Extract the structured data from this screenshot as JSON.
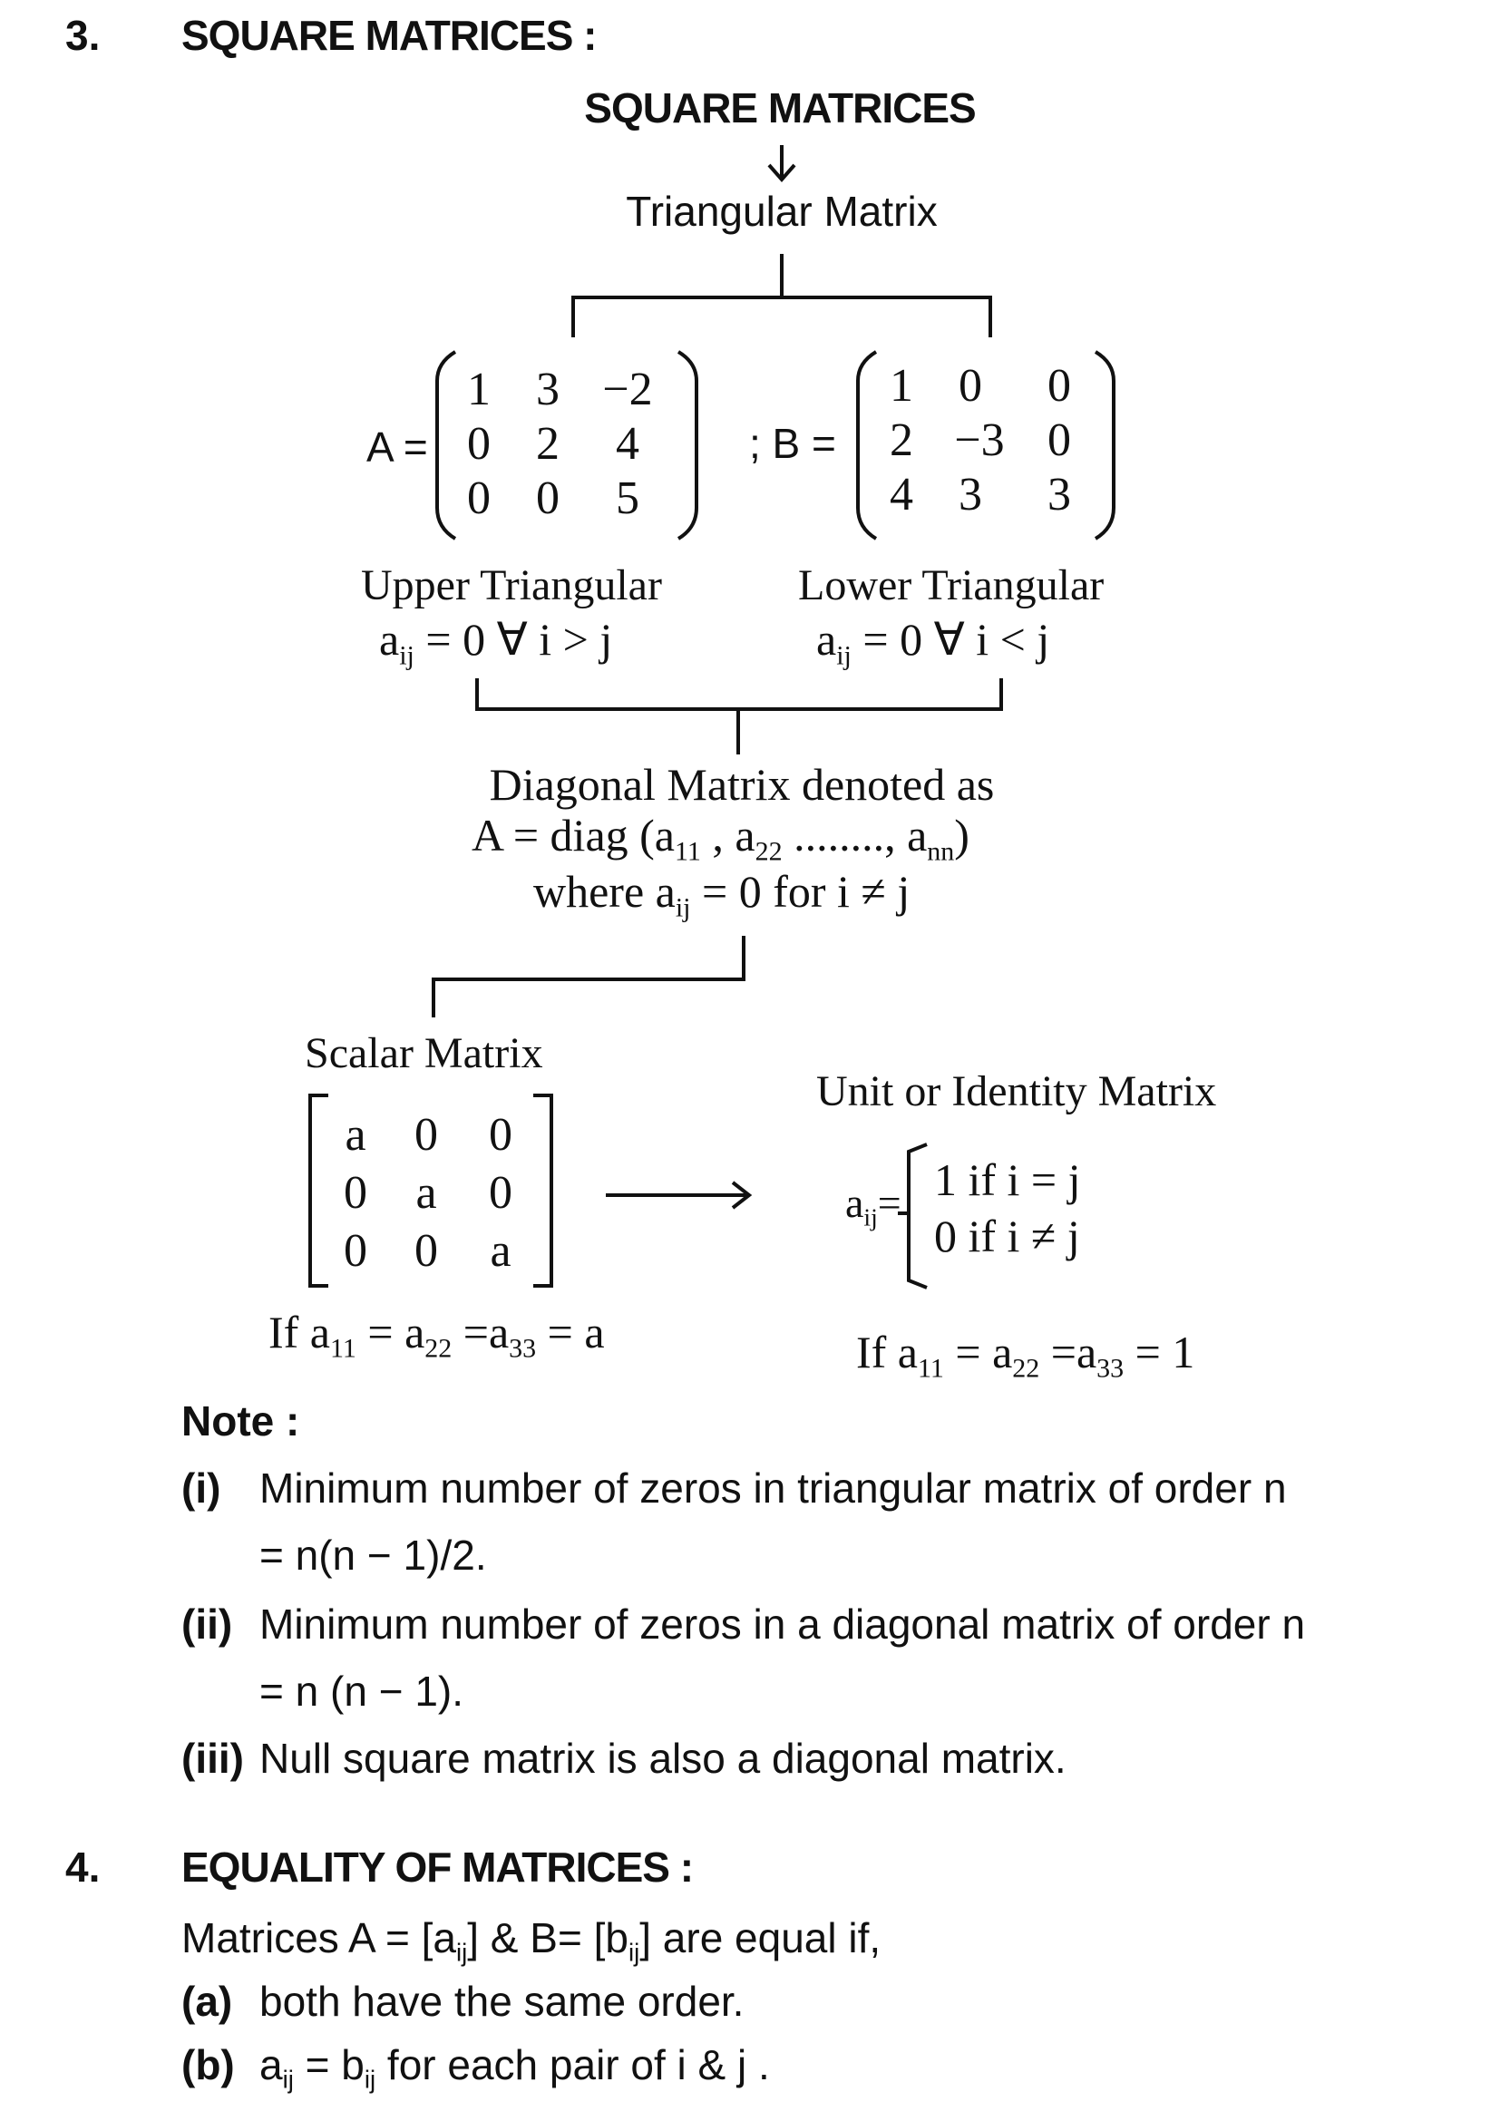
{
  "section3": {
    "number": "3.",
    "title": "SQUARE MATRICES :",
    "diagram_title": "SQUARE MATRICES",
    "triangular": "Triangular Matrix",
    "matrixA": {
      "name": "A =",
      "rows": [
        [
          "1",
          "3",
          "−2"
        ],
        [
          "0",
          "2",
          "4"
        ],
        [
          "0",
          "0",
          "5"
        ]
      ]
    },
    "matrixB": {
      "name": "; B =",
      "rows": [
        [
          "1",
          "0",
          "0"
        ],
        [
          "2",
          "−3",
          "0"
        ],
        [
          "4",
          "3",
          "3"
        ]
      ]
    },
    "upper": {
      "label": "Upper Triangular",
      "cond_a": "a",
      "cond_sub": "ij",
      "cond_rest": " =  0  ∀  i > j"
    },
    "lower": {
      "label": "Lower Triangular",
      "cond_a": "a",
      "cond_sub": "ij",
      "cond_rest": " =  0  ∀  i < j"
    },
    "diagonal": {
      "line1": "Diagonal Matrix denoted as",
      "line2_pre": "A = diag (a",
      "line2_s1": "11",
      "line2_mid1": " , a",
      "line2_s2": "22",
      "line2_mid2": " ........, a",
      "line2_s3": "nn",
      "line2_end": ")",
      "line3_pre": "where a",
      "line3_sub": "ij",
      "line3_rest": "  = 0 for i ≠ j"
    },
    "scalar": {
      "label": "Scalar Matrix",
      "rows": [
        [
          "a",
          "0",
          "0"
        ],
        [
          "0",
          "a",
          "0"
        ],
        [
          "0",
          "0",
          "a"
        ]
      ],
      "cond_pre": "If a",
      "cond_s1": "11",
      "cond_m1": " = a",
      "cond_s2": "22",
      "cond_m2": " =a",
      "cond_s3": "33",
      "cond_end": " = a"
    },
    "identity": {
      "label": "Unit or Identity Matrix",
      "a": "a",
      "a_sub": "ij",
      "eq": "=",
      "case1": "1  if   i = j",
      "case2": "0  if   i ≠ j",
      "cond_pre": "If  a",
      "cond_s1": "11",
      "cond_m1": " = a",
      "cond_s2": "22",
      "cond_m2": " =a",
      "cond_s3": "33",
      "cond_end": " = 1"
    }
  },
  "note": {
    "heading": "Note :",
    "items": [
      {
        "marker": "(i)",
        "text": "Minimum number of zeros in triangular matrix of order n",
        "cont": "= n(n − 1)/2."
      },
      {
        "marker": "(ii)",
        "text": "Minimum  number  of  zeros  in  a  diagonal  matrix  of  order  n",
        "cont": "= n (n − 1)."
      },
      {
        "marker": "(iii)",
        "text": "Null square matrix is also a diagonal matrix.",
        "cont": ""
      }
    ]
  },
  "section4": {
    "number": "4.",
    "title": "EQUALITY OF MATRICES :",
    "intro_pre": "Matrices A = [a",
    "intro_sub1": "ij",
    "intro_mid": "] & B= [b",
    "intro_sub2": "ij",
    "intro_end": "]  are equal if,",
    "a_marker": "(a)",
    "a_text": "both have  the same order.",
    "b_marker": "(b)",
    "b_pre": "a",
    "b_sub1": "ij",
    "b_mid": " = b",
    "b_sub2": "ij",
    "b_end": " for each pair of i & j ."
  }
}
